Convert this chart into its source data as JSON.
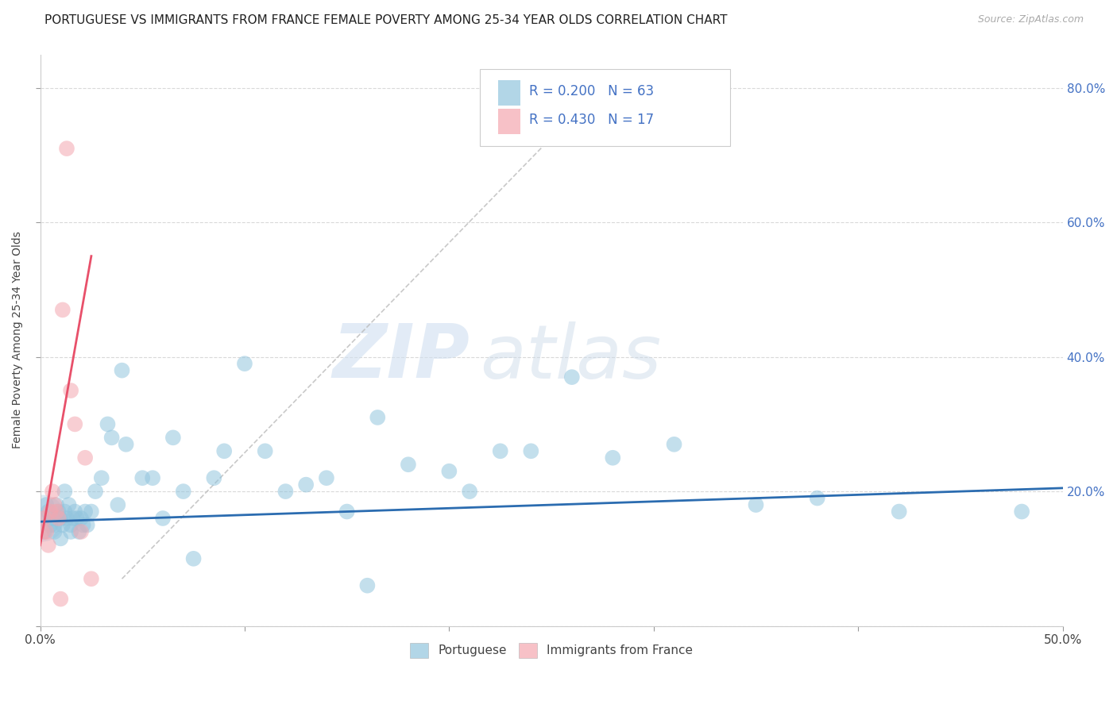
{
  "title": "PORTUGUESE VS IMMIGRANTS FROM FRANCE FEMALE POVERTY AMONG 25-34 YEAR OLDS CORRELATION CHART",
  "source": "Source: ZipAtlas.com",
  "ylabel": "Female Poverty Among 25-34 Year Olds",
  "xlim": [
    0.0,
    0.5
  ],
  "ylim": [
    0.0,
    0.85
  ],
  "xtick_positions": [
    0.0,
    0.1,
    0.2,
    0.3,
    0.4,
    0.5
  ],
  "xticklabels_show": [
    "0.0%",
    "",
    "",
    "",
    "",
    "50.0%"
  ],
  "ytick_positions": [
    0.0,
    0.2,
    0.4,
    0.6,
    0.8
  ],
  "yticklabels_right": [
    "",
    "20.0%",
    "40.0%",
    "60.0%",
    "80.0%"
  ],
  "blue_color": "#92c5de",
  "pink_color": "#f4a7b0",
  "blue_line_color": "#2b6cb0",
  "pink_line_color": "#e8506a",
  "legend_R_blue": "0.200",
  "legend_N_blue": "63",
  "legend_R_pink": "0.430",
  "legend_N_pink": "17",
  "legend_label_blue": "Portuguese",
  "legend_label_pink": "Immigrants from France",
  "watermark_zip": "ZIP",
  "watermark_atlas": "atlas",
  "background_color": "#ffffff",
  "grid_color": "#d0d0d0",
  "blue_scatter_x": [
    0.001,
    0.002,
    0.003,
    0.004,
    0.005,
    0.006,
    0.007,
    0.007,
    0.008,
    0.009,
    0.01,
    0.01,
    0.011,
    0.012,
    0.012,
    0.013,
    0.014,
    0.015,
    0.015,
    0.016,
    0.017,
    0.018,
    0.019,
    0.02,
    0.021,
    0.022,
    0.023,
    0.025,
    0.027,
    0.03,
    0.033,
    0.035,
    0.038,
    0.04,
    0.042,
    0.05,
    0.055,
    0.06,
    0.065,
    0.07,
    0.075,
    0.085,
    0.09,
    0.1,
    0.11,
    0.12,
    0.13,
    0.14,
    0.15,
    0.16,
    0.165,
    0.18,
    0.2,
    0.21,
    0.225,
    0.24,
    0.26,
    0.28,
    0.31,
    0.35,
    0.38,
    0.42,
    0.48
  ],
  "blue_scatter_y": [
    0.16,
    0.14,
    0.18,
    0.17,
    0.15,
    0.16,
    0.15,
    0.14,
    0.18,
    0.17,
    0.13,
    0.16,
    0.15,
    0.2,
    0.17,
    0.16,
    0.18,
    0.14,
    0.15,
    0.16,
    0.17,
    0.16,
    0.14,
    0.16,
    0.15,
    0.17,
    0.15,
    0.17,
    0.2,
    0.22,
    0.3,
    0.28,
    0.18,
    0.38,
    0.27,
    0.22,
    0.22,
    0.16,
    0.28,
    0.2,
    0.1,
    0.22,
    0.26,
    0.39,
    0.26,
    0.2,
    0.21,
    0.22,
    0.17,
    0.06,
    0.31,
    0.24,
    0.23,
    0.2,
    0.26,
    0.26,
    0.37,
    0.25,
    0.27,
    0.18,
    0.19,
    0.17,
    0.17
  ],
  "pink_scatter_x": [
    0.001,
    0.002,
    0.003,
    0.004,
    0.005,
    0.006,
    0.007,
    0.008,
    0.009,
    0.01,
    0.011,
    0.013,
    0.015,
    0.017,
    0.02,
    0.022,
    0.025
  ],
  "pink_scatter_y": [
    0.14,
    0.16,
    0.14,
    0.12,
    0.17,
    0.2,
    0.18,
    0.17,
    0.16,
    0.04,
    0.47,
    0.71,
    0.35,
    0.3,
    0.14,
    0.25,
    0.07
  ],
  "pink_trend_x0": 0.0,
  "pink_trend_y0": 0.12,
  "pink_trend_x1": 0.025,
  "pink_trend_y1": 0.55,
  "blue_trend_x0": 0.0,
  "blue_trend_y0": 0.155,
  "blue_trend_x1": 0.5,
  "blue_trend_y1": 0.205,
  "ref_line_x0": 0.04,
  "ref_line_y0": 0.07,
  "ref_line_x1": 0.28,
  "ref_line_y1": 0.82
}
